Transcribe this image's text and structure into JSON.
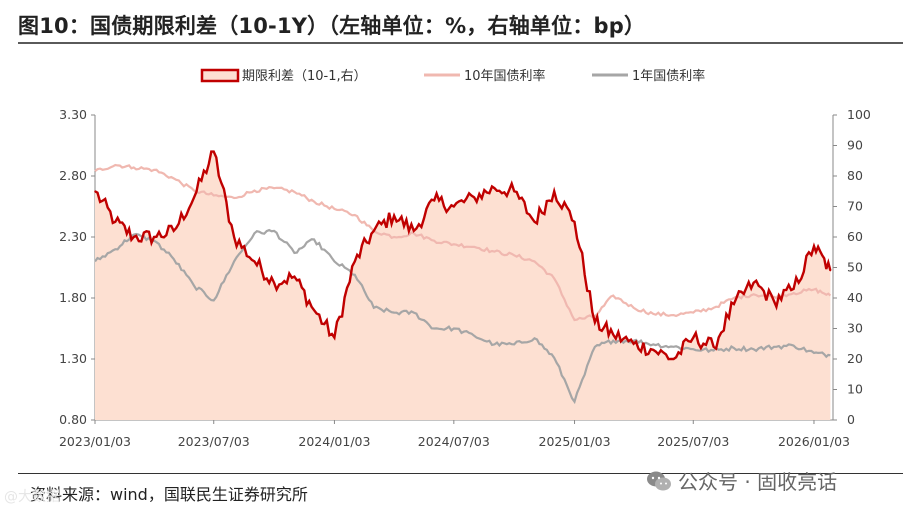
{
  "header": {
    "title": "图10：国债期限利差（10-1Y）（左轴单位：%，右轴单位：bp）"
  },
  "footer": {
    "source": "资料来源：wind，国联民生证券研究所",
    "watermark": "公众号 · 固收亮话",
    "corner_watermark": "@大数据"
  },
  "chart_data": {
    "type": "area",
    "x_ticks": [
      "2023/01/03",
      "2023/07/03",
      "2024/01/03",
      "2024/07/03",
      "2025/01/03",
      "2025/07/03",
      "2026/01/03"
    ],
    "y_left": {
      "lim": [
        0.8,
        3.3
      ],
      "ticks": [
        "0.80",
        "1.30",
        "1.80",
        "2.30",
        "2.80",
        "3.30"
      ]
    },
    "y_right": {
      "lim": [
        0,
        100
      ],
      "ticks": [
        "0",
        "10",
        "20",
        "30",
        "40",
        "50",
        "60",
        "70",
        "80",
        "90",
        "100"
      ]
    },
    "legend": {
      "placement": "top"
    },
    "colors": {
      "spread_line": "#c00000",
      "spread_fill": "#fde0d2",
      "y10": "#f0b8b0",
      "y1": "#a6a6a6"
    },
    "series": [
      {
        "name": "期限利差（10-1,右）",
        "axis": "right",
        "x": [
          "2023/01/03",
          "2023/02/03",
          "2023/03/03",
          "2023/04/03",
          "2023/05/03",
          "2023/06/03",
          "2023/07/03",
          "2023/08/03",
          "2023/09/03",
          "2023/10/03",
          "2023/11/03",
          "2023/12/03",
          "2024/01/03",
          "2024/02/03",
          "2024/03/03",
          "2024/04/03",
          "2024/05/03",
          "2024/06/03",
          "2024/07/03",
          "2024/08/03",
          "2024/09/03",
          "2024/10/03",
          "2024/11/03",
          "2024/12/03",
          "2025/01/03",
          "2025/02/03",
          "2025/03/03",
          "2025/04/03",
          "2025/05/03",
          "2025/06/03",
          "2025/07/03",
          "2025/08/03",
          "2025/09/03",
          "2025/10/03",
          "2025/11/03",
          "2025/12/03",
          "2026/01/03",
          "2026/01/28"
        ],
        "values": [
          75,
          65,
          60,
          60,
          62,
          73,
          88,
          60,
          52,
          45,
          47,
          36,
          27,
          52,
          62,
          67,
          62,
          72,
          70,
          73,
          76,
          75,
          65,
          75,
          65,
          32,
          28,
          25,
          23,
          20,
          27,
          24,
          38,
          45,
          39,
          43,
          57,
          49
        ]
      },
      {
        "name": "10年国债利率",
        "axis": "left",
        "x": [
          "2023/01/03",
          "2023/02/03",
          "2023/03/03",
          "2023/04/03",
          "2023/05/03",
          "2023/06/03",
          "2023/07/03",
          "2023/08/03",
          "2023/09/03",
          "2023/10/03",
          "2023/11/03",
          "2023/12/03",
          "2024/01/03",
          "2024/02/03",
          "2024/03/03",
          "2024/04/03",
          "2024/05/03",
          "2024/06/03",
          "2024/07/03",
          "2024/08/03",
          "2024/09/03",
          "2024/10/03",
          "2024/11/03",
          "2024/12/03",
          "2025/01/03",
          "2025/02/03",
          "2025/03/03",
          "2025/04/03",
          "2025/05/03",
          "2025/06/03",
          "2025/07/03",
          "2025/08/03",
          "2025/09/03",
          "2025/10/03",
          "2025/11/03",
          "2025/12/03",
          "2026/01/03",
          "2026/01/28"
        ],
        "values": [
          2.84,
          2.89,
          2.87,
          2.85,
          2.78,
          2.68,
          2.64,
          2.62,
          2.68,
          2.7,
          2.67,
          2.59,
          2.53,
          2.48,
          2.35,
          2.3,
          2.33,
          2.27,
          2.24,
          2.22,
          2.18,
          2.15,
          2.1,
          1.96,
          1.62,
          1.65,
          1.82,
          1.72,
          1.67,
          1.66,
          1.68,
          1.72,
          1.8,
          1.83,
          1.81,
          1.84,
          1.87,
          1.82
        ]
      },
      {
        "name": "1年国债利率",
        "axis": "left",
        "x": [
          "2023/01/03",
          "2023/02/03",
          "2023/03/03",
          "2023/04/03",
          "2023/05/03",
          "2023/06/03",
          "2023/07/03",
          "2023/08/03",
          "2023/09/03",
          "2023/10/03",
          "2023/11/03",
          "2023/12/03",
          "2024/01/03",
          "2024/02/03",
          "2024/03/03",
          "2024/04/03",
          "2024/05/03",
          "2024/06/03",
          "2024/07/03",
          "2024/08/03",
          "2024/09/03",
          "2024/10/03",
          "2024/11/03",
          "2024/12/03",
          "2025/01/03",
          "2025/02/03",
          "2025/03/03",
          "2025/04/03",
          "2025/05/03",
          "2025/06/03",
          "2025/07/03",
          "2025/08/03",
          "2025/09/03",
          "2025/10/03",
          "2025/11/03",
          "2025/12/03",
          "2026/01/03",
          "2026/01/28"
        ],
        "values": [
          2.1,
          2.2,
          2.32,
          2.27,
          2.12,
          1.9,
          1.78,
          2.1,
          2.33,
          2.35,
          2.17,
          2.28,
          2.1,
          1.99,
          1.72,
          1.68,
          1.68,
          1.55,
          1.55,
          1.49,
          1.42,
          1.42,
          1.47,
          1.31,
          0.95,
          1.4,
          1.45,
          1.45,
          1.42,
          1.4,
          1.38,
          1.37,
          1.39,
          1.38,
          1.4,
          1.41,
          1.35,
          1.33
        ]
      }
    ]
  }
}
